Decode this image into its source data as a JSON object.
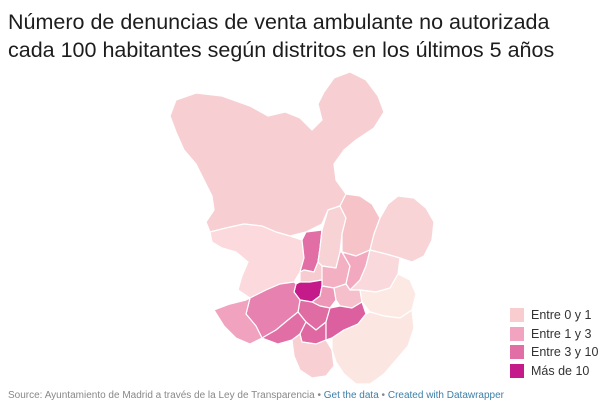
{
  "title": "Número de denuncias de venta ambulante no autorizada cada 100 habitantes según distritos en los últimos 5 años",
  "legend": [
    {
      "label": "Entre 0 y 1",
      "color": "#f9cdd0"
    },
    {
      "label": "Entre 1 y 3",
      "color": "#f1a3bf"
    },
    {
      "label": "Entre 3 y 10",
      "color": "#e26ea6"
    },
    {
      "label": "Más de 10",
      "color": "#c51b8a"
    }
  ],
  "map": {
    "colors": {
      "light": "#fbe4e6",
      "lightest": "#fdebe4",
      "pale": "#f7d0d3"
    }
  },
  "footer": {
    "source": "Source: Ayuntamiento de Madrid a través de la Ley de Transparencia",
    "sep1": " • ",
    "get_data": "Get the data",
    "sep2": " • ",
    "created": "Created with Datawrapper"
  }
}
